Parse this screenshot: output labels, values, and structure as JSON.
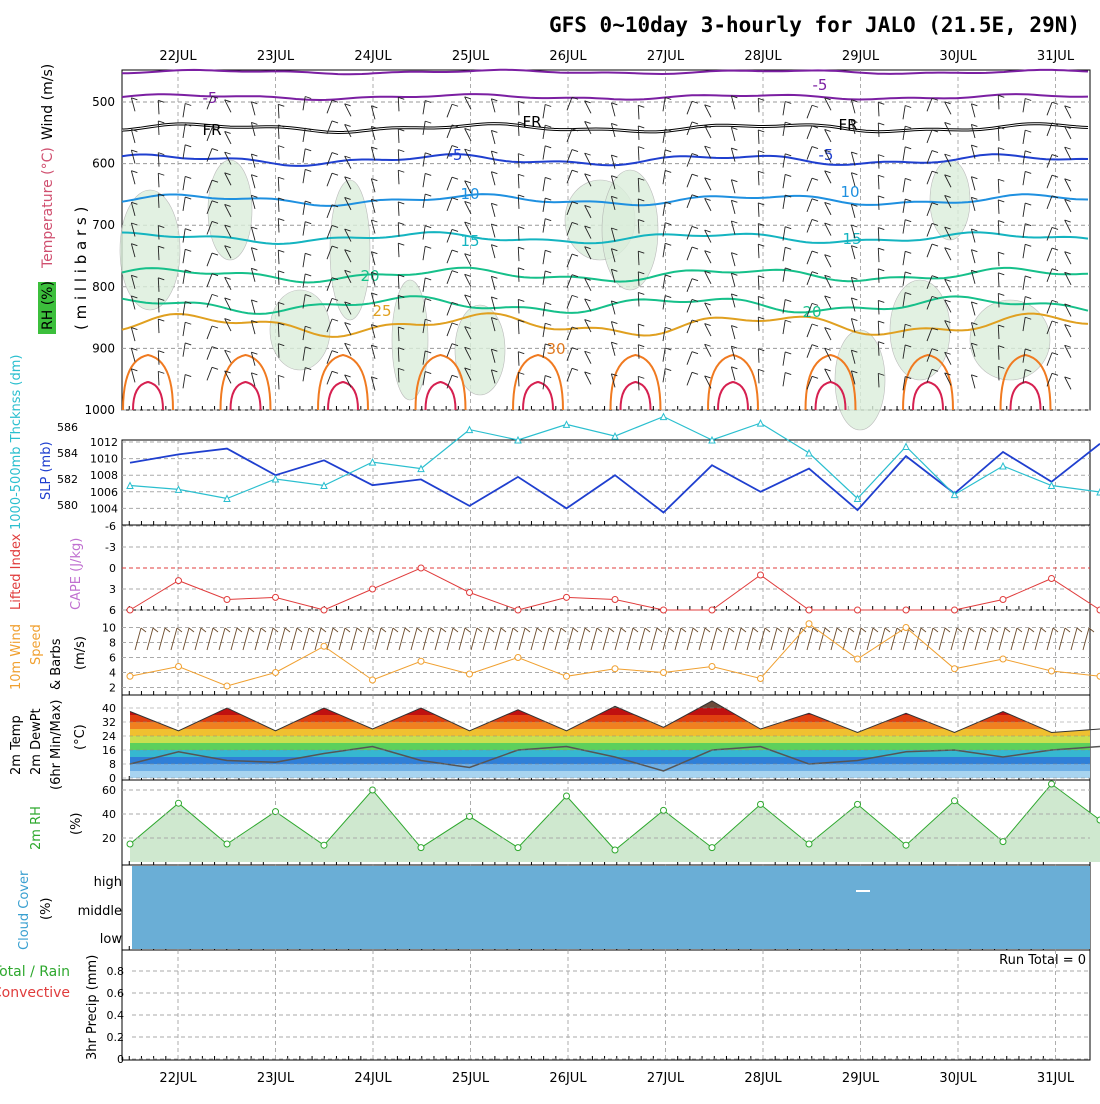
{
  "header": {
    "title": "GFS 0~10day 3-hourly for JALO (21.5E, 29N)"
  },
  "dates": [
    "22JUL",
    "23JUL",
    "24JUL",
    "25JUL",
    "26JUL",
    "27JUL",
    "28JUL",
    "29JUL",
    "30JUL",
    "31JUL"
  ],
  "panels": {
    "upper": {
      "ylabel_main": "( m i l l i b a r s )",
      "label_rh": "RH (%)",
      "label_temp": "Temperature (°C)",
      "label_wind": "Wind (m/s)",
      "yticks": [
        "500",
        "600",
        "700",
        "800",
        "900",
        "1000"
      ],
      "contour_labels": [
        "-5",
        "-5",
        "FR",
        "FR",
        "FR",
        "-5",
        "-5",
        "10",
        "10",
        "15",
        "15",
        "20",
        "25",
        "30",
        "20"
      ]
    },
    "slp": {
      "label_thick": "1000-500mb Thcknss (dm)",
      "label_slp": "SLP (mb)",
      "yticks_left": [
        "586",
        "584",
        "582",
        "580"
      ],
      "yticks_right": [
        "1012",
        "1010",
        "1008",
        "1006",
        "1004"
      ]
    },
    "li": {
      "label_li": "Lifted Index",
      "label_cape": "CAPE (J/kg)",
      "yticks": [
        "-6",
        "-3",
        "0",
        "3",
        "6"
      ]
    },
    "wind10": {
      "label1": "10m Wind",
      "label2": "Speed",
      "label3": "& Barbs",
      "unit": "(m/s)",
      "yticks": [
        "10",
        "8",
        "6",
        "4",
        "2"
      ]
    },
    "temp2m": {
      "label1": "2m Temp",
      "label2": "2m DewPt",
      "label3": "(6hr Min/Max)",
      "unit": "(°C)",
      "yticks": [
        "40",
        "32",
        "24",
        "16",
        "8",
        "0"
      ]
    },
    "rh2m": {
      "label": "2m RH",
      "unit": "(%)",
      "yticks": [
        "60",
        "40",
        "20"
      ]
    },
    "cloud": {
      "label": "Cloud Cover",
      "unit": "(%)",
      "levels": [
        "high",
        "middle",
        "low"
      ]
    },
    "precip": {
      "label_total": "Total / Rain",
      "label_conv": "Convective",
      "label_axis": "3hr Precip (mm)",
      "run_total": "Run Total = 0",
      "yticks": [
        "0.8",
        "0.6",
        "0.4",
        "0.2",
        "0"
      ]
    }
  },
  "colors": {
    "slp": "#1f3fcf",
    "thickness": "#2bbfcf",
    "lifted_index": "#e03c3c",
    "wind_speed": "#f0a030",
    "rh": "#2ea82e",
    "cloud": "#6aaed6",
    "dewpoint": "#555555"
  },
  "chart_data": [
    {
      "type": "line",
      "panel": "SLP / Thickness",
      "x": [
        "21JUL 12Z",
        "22JUL 00Z",
        "22JUL 12Z",
        "23JUL 00Z",
        "23JUL 12Z",
        "24JUL 00Z",
        "24JUL 12Z",
        "25JUL 00Z",
        "25JUL 12Z",
        "26JUL 00Z",
        "26JUL 12Z",
        "27JUL 00Z",
        "27JUL 12Z",
        "28JUL 00Z",
        "28JUL 12Z",
        "29JUL 00Z",
        "29JUL 12Z",
        "30JUL 00Z",
        "30JUL 12Z",
        "31JUL 00Z",
        "31JUL 06Z"
      ],
      "series": [
        {
          "values": [
            1009.5,
            1010.5,
            1011.2,
            1008.0,
            1009.8,
            1006.8,
            1007.5,
            1004.3,
            1007.8,
            1004.0,
            1008.0,
            1003.5,
            1009.2,
            1006.0,
            1008.8,
            1003.8,
            1010.3,
            1005.8,
            1010.8,
            1007.2,
            1011.8
          ]
        },
        {
          "values": [
            581.5,
            581.2,
            580.5,
            582.0,
            581.5,
            583.3,
            582.8,
            585.8,
            585.0,
            586.2,
            585.3,
            586.8,
            585.0,
            586.3,
            584.0,
            580.5,
            584.5,
            580.8,
            583.0,
            581.5,
            581.0
          ]
        }
      ],
      "ylim_slp": [
        1002,
        1012
      ],
      "ylim_thickness": [
        579,
        587
      ]
    },
    {
      "type": "line",
      "panel": "Lifted Index",
      "x": [
        "21JUL 12Z",
        "22JUL 00Z",
        "22JUL 12Z",
        "23JUL 00Z",
        "23JUL 12Z",
        "24JUL 00Z",
        "24JUL 12Z",
        "25JUL 00Z",
        "25JUL 12Z",
        "26JUL 00Z",
        "26JUL 12Z",
        "27JUL 00Z",
        "27JUL 12Z",
        "28JUL 00Z",
        "28JUL 12Z",
        "29JUL 00Z",
        "29JUL 12Z",
        "30JUL 00Z",
        "30JUL 12Z",
        "31JUL 00Z",
        "31JUL 06Z"
      ],
      "values": [
        6,
        1.8,
        4.5,
        4.2,
        6,
        3.0,
        0,
        3.5,
        6,
        4.2,
        4.5,
        6,
        6,
        1.0,
        6,
        6,
        6,
        6,
        4.5,
        1.5,
        6
      ],
      "ylim": [
        6,
        -6
      ]
    },
    {
      "type": "line",
      "panel": "10m Wind Speed",
      "x": [
        "21JUL 12Z",
        "22JUL 00Z",
        "22JUL 12Z",
        "23JUL 00Z",
        "23JUL 12Z",
        "24JUL 00Z",
        "24JUL 12Z",
        "25JUL 00Z",
        "25JUL 12Z",
        "26JUL 00Z",
        "26JUL 12Z",
        "27JUL 00Z",
        "27JUL 12Z",
        "28JUL 00Z",
        "28JUL 12Z",
        "29JUL 00Z",
        "29JUL 12Z",
        "30JUL 00Z",
        "30JUL 12Z",
        "31JUL 00Z",
        "31JUL 06Z"
      ],
      "values": [
        3.5,
        4.8,
        2.2,
        4.0,
        7.5,
        3.0,
        5.5,
        3.8,
        6.0,
        3.5,
        4.5,
        4.0,
        4.8,
        3.2,
        10.5,
        5.8,
        10.0,
        4.5,
        5.8,
        4.2,
        3.5
      ],
      "ylim": [
        2,
        11
      ]
    },
    {
      "type": "area",
      "panel": "2m Temp / DewPt",
      "x": [
        "21JUL 12Z",
        "22JUL 00Z",
        "22JUL 12Z",
        "23JUL 00Z",
        "23JUL 12Z",
        "24JUL 00Z",
        "24JUL 12Z",
        "25JUL 00Z",
        "25JUL 12Z",
        "26JUL 00Z",
        "26JUL 12Z",
        "27JUL 00Z",
        "27JUL 12Z",
        "28JUL 00Z",
        "28JUL 12Z",
        "29JUL 00Z",
        "29JUL 12Z",
        "30JUL 00Z",
        "30JUL 12Z",
        "31JUL 00Z",
        "31JUL 06Z"
      ],
      "series": [
        {
          "values": [
            38,
            27,
            40,
            27,
            40,
            28,
            40,
            27,
            39,
            27,
            41,
            29,
            44,
            28,
            37,
            26,
            37,
            26,
            38,
            26,
            28
          ]
        },
        {
          "values": [
            8,
            15,
            10,
            9,
            14,
            18,
            10,
            6,
            16,
            18,
            12,
            4,
            16,
            18,
            8,
            10,
            15,
            16,
            12,
            16,
            18
          ]
        }
      ],
      "ylim": [
        0,
        44
      ]
    },
    {
      "type": "area",
      "panel": "2m RH",
      "x": [
        "21JUL 12Z",
        "22JUL 00Z",
        "22JUL 12Z",
        "23JUL 00Z",
        "23JUL 12Z",
        "24JUL 00Z",
        "24JUL 12Z",
        "25JUL 00Z",
        "25JUL 12Z",
        "26JUL 00Z",
        "26JUL 12Z",
        "27JUL 00Z",
        "27JUL 12Z",
        "28JUL 00Z",
        "28JUL 12Z",
        "29JUL 00Z",
        "29JUL 12Z",
        "30JUL 00Z",
        "30JUL 12Z",
        "31JUL 00Z",
        "31JUL 06Z"
      ],
      "values": [
        15,
        49,
        15,
        42,
        14,
        60,
        12,
        38,
        12,
        55,
        10,
        43,
        12,
        48,
        15,
        48,
        14,
        51,
        17,
        65,
        35
      ],
      "ylim": [
        0,
        65
      ]
    },
    {
      "type": "bar",
      "panel": "3hr Precip",
      "values": [],
      "ylim": [
        0,
        0.9
      ]
    }
  ]
}
